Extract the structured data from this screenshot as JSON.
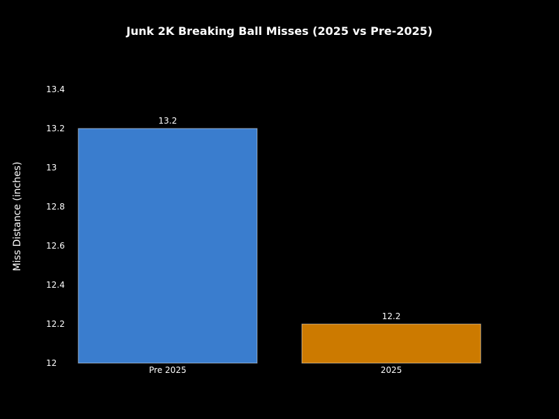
{
  "chart_data": {
    "type": "bar",
    "title": "Junk 2K Breaking Ball Misses (2025 vs Pre-2025)",
    "xlabel": "",
    "ylabel": "Miss Distance (inches)",
    "categories": [
      "Pre 2025",
      "2025"
    ],
    "values": [
      13.2,
      12.2
    ],
    "value_labels": [
      "13.2",
      "12.2"
    ],
    "ylim": [
      12,
      13.4
    ],
    "yticks": [
      12,
      12.2,
      12.4,
      12.6,
      12.8,
      13,
      13.2,
      13.4
    ],
    "ytick_labels": [
      "12",
      "12.2",
      "12.4",
      "12.6",
      "12.8",
      "13",
      "13.2",
      "13.4"
    ],
    "colors": [
      "#3A7DCE",
      "#CC7A00"
    ],
    "bar_edge_color": "#FFFFFF",
    "background": "#000000",
    "grid": false,
    "legend": "none"
  }
}
